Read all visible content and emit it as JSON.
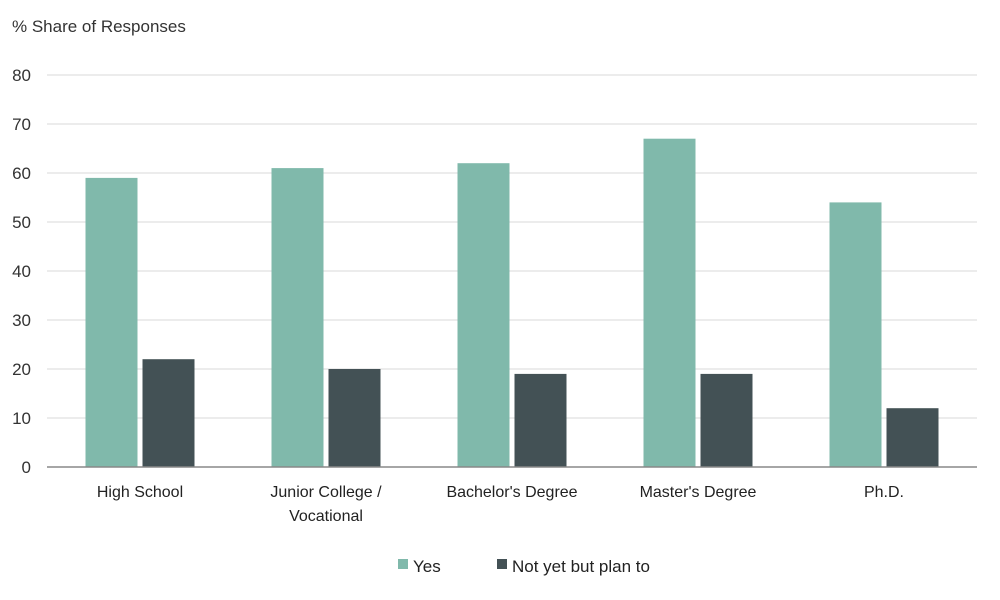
{
  "chart_data": {
    "type": "bar",
    "unit_label": "% Share of Responses",
    "categories": [
      "High School",
      "Junior College / Vocational",
      "Bachelor's Degree",
      "Master's Degree",
      "Ph.D."
    ],
    "category_lines": [
      [
        "High School"
      ],
      [
        "Junior College /",
        "Vocational"
      ],
      [
        "Bachelor's Degree"
      ],
      [
        "Master's Degree"
      ],
      [
        "Ph.D."
      ]
    ],
    "series": [
      {
        "name": "Yes",
        "color": "#80b9ab",
        "values": [
          59,
          61,
          62,
          67,
          54
        ]
      },
      {
        "name": "Not yet but plan to",
        "color": "#435155",
        "values": [
          22,
          20,
          19,
          19,
          12
        ]
      }
    ],
    "ylim": [
      0,
      80
    ],
    "yticks": [
      0,
      10,
      20,
      30,
      40,
      50,
      60,
      70,
      80
    ],
    "grid": true,
    "legend_position": "bottom-center"
  }
}
